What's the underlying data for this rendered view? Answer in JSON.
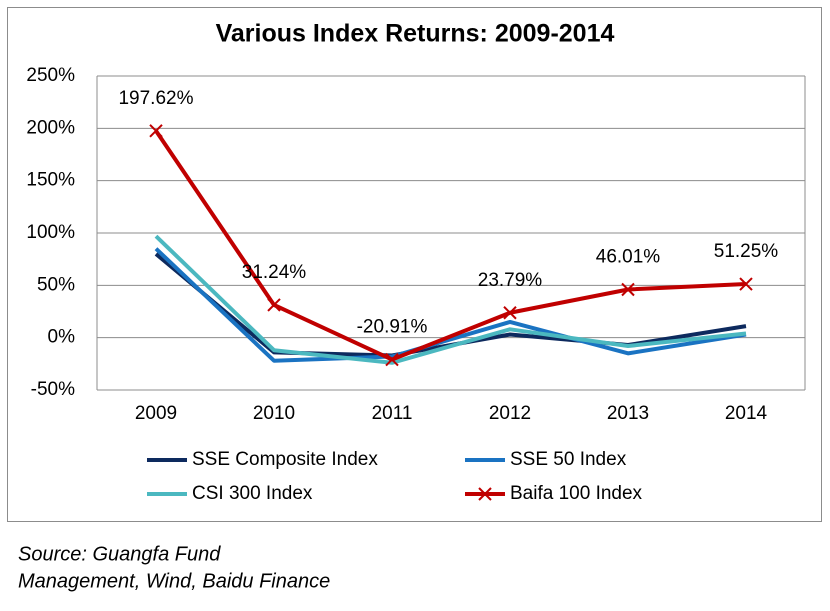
{
  "chart_data": {
    "type": "line",
    "title": "Various Index Returns: 2009-2014",
    "categories": [
      "2009",
      "2010",
      "2011",
      "2012",
      "2013",
      "2014"
    ],
    "series": [
      {
        "name": "SSE Composite Index",
        "color": "#0d2a5e",
        "values": [
          80,
          -14,
          -17,
          3,
          -7,
          11
        ]
      },
      {
        "name": "SSE 50 Index",
        "color": "#1a73c2",
        "values": [
          85,
          -22,
          -18,
          15,
          -15,
          3
        ]
      },
      {
        "name": "CSI 300 Index",
        "color": "#4bb8c0",
        "values": [
          97,
          -12,
          -24,
          8,
          -8,
          4
        ]
      },
      {
        "name": "Baifa 100 Index",
        "color": "#c00000",
        "marker": "x",
        "values": [
          197.62,
          31.24,
          -20.91,
          23.79,
          46.01,
          51.25
        ],
        "value_labels": [
          "197.62%",
          "31.24%",
          "-20.91%",
          "23.79%",
          "46.01%",
          "51.25%"
        ]
      }
    ],
    "ylim": [
      -50,
      250
    ],
    "yticks": [
      {
        "value": -50,
        "label": "-50%"
      },
      {
        "value": 0,
        "label": "0%"
      },
      {
        "value": 50,
        "label": "50%"
      },
      {
        "value": 100,
        "label": "100%"
      },
      {
        "value": 150,
        "label": "150%"
      },
      {
        "value": 200,
        "label": "200%"
      },
      {
        "value": 250,
        "label": "250%"
      }
    ],
    "grid": true,
    "legend": "bottom",
    "source": [
      "Source: Guangfa Fund",
      "Management, Wind, Baidu Finance"
    ]
  }
}
